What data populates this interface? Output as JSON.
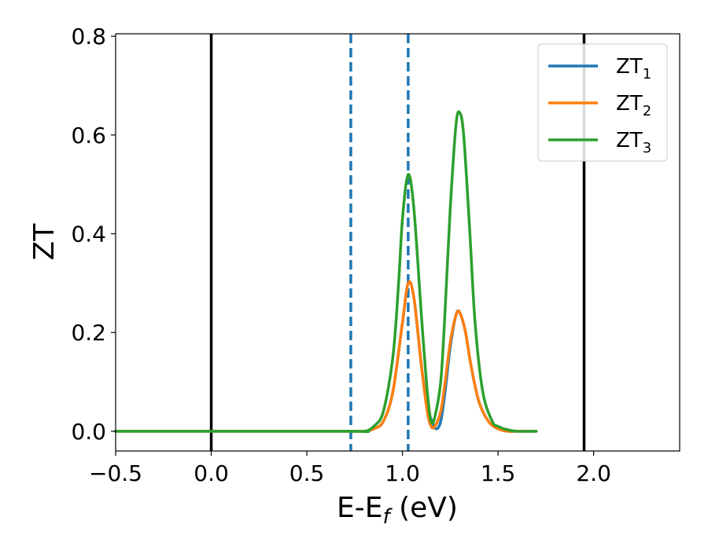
{
  "chart_data": {
    "type": "line",
    "xlabel": {
      "main": "E-E",
      "sub": "f",
      "suffix": " (eV)"
    },
    "ylabel": "ZT",
    "xlim": [
      -0.5,
      2.45
    ],
    "ylim": [
      -0.04,
      0.805
    ],
    "xticks": [
      {
        "value": -0.5,
        "label": "−0.5"
      },
      {
        "value": 0.0,
        "label": "0.0"
      },
      {
        "value": 0.5,
        "label": "0.5"
      },
      {
        "value": 1.0,
        "label": "1.0"
      },
      {
        "value": 1.5,
        "label": "1.5"
      },
      {
        "value": 2.0,
        "label": "2.0"
      }
    ],
    "yticks": [
      {
        "value": 0.0,
        "label": "0.0"
      },
      {
        "value": 0.2,
        "label": "0.2"
      },
      {
        "value": 0.4,
        "label": "0.4"
      },
      {
        "value": 0.6,
        "label": "0.6"
      },
      {
        "value": 0.8,
        "label": "0.8"
      }
    ],
    "grid": false,
    "legend_position": "top-right",
    "vertical_lines": [
      {
        "x": 0.0,
        "style": "solid",
        "color": "#000000"
      },
      {
        "x": 1.95,
        "style": "solid",
        "color": "#000000"
      },
      {
        "x": 0.73,
        "style": "dashed",
        "color": "#1f77b4"
      },
      {
        "x": 1.03,
        "style": "dashed",
        "color": "#1f77b4"
      }
    ],
    "series": [
      {
        "name": {
          "main": "ZT",
          "sub": "1"
        },
        "color": "#1f77b4",
        "x": [
          -0.5,
          0.7,
          0.8,
          0.85,
          0.9,
          0.95,
          1.0,
          1.03,
          1.06,
          1.1,
          1.13,
          1.16,
          1.18,
          1.2,
          1.22,
          1.25,
          1.28,
          1.3,
          1.33,
          1.36,
          1.4,
          1.45,
          1.5,
          1.55,
          1.6,
          1.7
        ],
        "y": [
          0.0,
          0.0,
          0.0,
          0.005,
          0.02,
          0.08,
          0.22,
          0.3,
          0.27,
          0.13,
          0.05,
          0.015,
          0.005,
          0.02,
          0.07,
          0.17,
          0.235,
          0.24,
          0.2,
          0.13,
          0.06,
          0.02,
          0.005,
          0.0,
          0.0,
          0.0
        ]
      },
      {
        "name": {
          "main": "ZT",
          "sub": "2"
        },
        "color": "#ff7f0e",
        "x": [
          -0.5,
          0.7,
          0.8,
          0.85,
          0.9,
          0.95,
          1.0,
          1.03,
          1.06,
          1.1,
          1.13,
          1.15,
          1.17,
          1.2,
          1.22,
          1.25,
          1.28,
          1.3,
          1.33,
          1.36,
          1.4,
          1.45,
          1.5,
          1.55,
          1.6,
          1.7
        ],
        "y": [
          0.0,
          0.0,
          0.0,
          0.005,
          0.02,
          0.08,
          0.22,
          0.3,
          0.27,
          0.13,
          0.04,
          0.01,
          0.01,
          0.04,
          0.09,
          0.18,
          0.235,
          0.24,
          0.2,
          0.13,
          0.06,
          0.02,
          0.005,
          0.0,
          0.0,
          0.0
        ]
      },
      {
        "name": {
          "main": "ZT",
          "sub": "3"
        },
        "color": "#2ca02c",
        "x": [
          -0.5,
          0.7,
          0.8,
          0.85,
          0.9,
          0.95,
          0.98,
          1.0,
          1.03,
          1.06,
          1.1,
          1.13,
          1.15,
          1.17,
          1.2,
          1.22,
          1.25,
          1.28,
          1.3,
          1.32,
          1.35,
          1.38,
          1.42,
          1.47,
          1.5,
          1.55,
          1.6,
          1.7
        ],
        "y": [
          0.0,
          0.0,
          0.0,
          0.01,
          0.04,
          0.15,
          0.3,
          0.43,
          0.52,
          0.45,
          0.23,
          0.08,
          0.02,
          0.03,
          0.1,
          0.22,
          0.45,
          0.62,
          0.645,
          0.6,
          0.42,
          0.22,
          0.08,
          0.02,
          0.01,
          0.003,
          0.0,
          0.0
        ]
      }
    ]
  }
}
